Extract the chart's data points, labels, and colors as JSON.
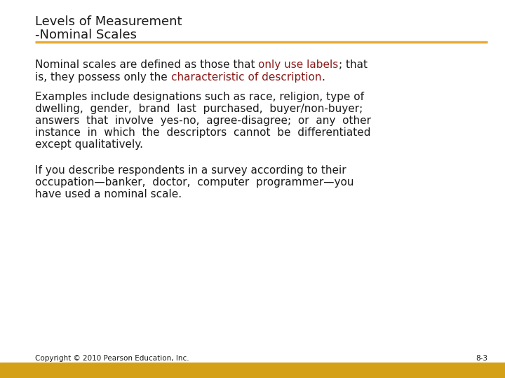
{
  "title_line1": "Levels of Measurement",
  "title_line2": "-Nominal Scales",
  "title_color": "#1a1a1a",
  "title_fontsize": 13,
  "separator_color": "#E8A830",
  "separator_linewidth": 2.5,
  "footer_bar_color": "#D4A017",
  "footer_text": "Copyright © 2010 Pearson Education, Inc.",
  "footer_page": "8-3",
  "footer_fontsize": 7.5,
  "body_fontsize": 11,
  "body_color": "#1a1a1a",
  "highlight_color": "#8B1A1A",
  "background_color": "#ffffff",
  "para2_lines": [
    "Examples include designations such as race, religion, type of",
    "dwelling,  gender,  brand  last  purchased,  buyer/non-buyer;",
    "answers  that  involve  yes-no,  agree-disagree;  or  any  other",
    "instance  in  which  the  descriptors  cannot  be  differentiated",
    "except qualitatively."
  ],
  "para3_lines": [
    "If you describe respondents in a survey according to their",
    "occupation—banker,  doctor,  computer  programmer—you",
    "have used a nominal scale."
  ],
  "para1_l1_black1": "Nominal scales are defined as those that ",
  "para1_l1_red": "only use labels",
  "para1_l1_black2": "; that",
  "para1_l2_black1": "is, they possess only the ",
  "para1_l2_red": "characteristic of description",
  "para1_l2_black2": "."
}
